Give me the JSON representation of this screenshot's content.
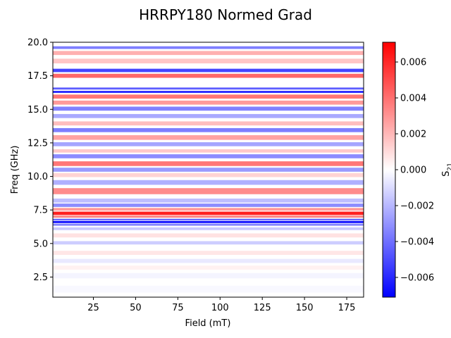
{
  "chart_data": {
    "type": "heatmap",
    "title": "HRRPY180 Normed Grad",
    "xlabel": "Field (mT)",
    "ylabel": "Freq (GHz)",
    "xlim": [
      1,
      185
    ],
    "ylim": [
      1,
      20
    ],
    "x_ticks": [
      25,
      50,
      75,
      100,
      125,
      150,
      175
    ],
    "x_tick_labels": [
      "25",
      "50",
      "75",
      "100",
      "125",
      "150",
      "175"
    ],
    "y_ticks": [
      2.5,
      5.0,
      7.5,
      10.0,
      12.5,
      15.0,
      17.5,
      20.0
    ],
    "y_tick_labels": [
      "2.5",
      "5.0",
      "7.5",
      "10.0",
      "12.5",
      "15.0",
      "17.5",
      "20.0"
    ],
    "colorbar": {
      "label": "S21",
      "label_main": "S",
      "label_sub": "21",
      "range": [
        -0.0071,
        0.0071
      ],
      "ticks": [
        0.006,
        0.004,
        0.002,
        0.0,
        -0.002,
        -0.004,
        -0.006
      ],
      "tick_labels": [
        "0.006",
        "0.004",
        "0.002",
        "0.000",
        "−0.002",
        "−0.004",
        "−0.006"
      ],
      "colormap": "bwr",
      "low_color": "#0000ff",
      "mid_color": "#ffffff",
      "high_color": "#ff0000"
    },
    "bands": [
      {
        "freq": 1.6,
        "width": 0.5,
        "value": -0.0002
      },
      {
        "freq": 2.6,
        "width": 0.4,
        "value": -0.0003
      },
      {
        "freq": 3.2,
        "width": 0.3,
        "value": 0.0004
      },
      {
        "freq": 3.7,
        "width": 0.3,
        "value": -0.0006
      },
      {
        "freq": 4.3,
        "width": 0.3,
        "value": 0.0007
      },
      {
        "freq": 5.05,
        "width": 0.25,
        "value": -0.0014
      },
      {
        "freq": 5.6,
        "width": 0.3,
        "value": 0.0008
      },
      {
        "freq": 6.1,
        "width": 0.2,
        "value": -0.0015
      },
      {
        "freq": 6.4,
        "width": 0.15,
        "value": -0.0035
      },
      {
        "freq": 6.6,
        "width": 0.15,
        "value": -0.0068
      },
      {
        "freq": 6.78,
        "width": 0.12,
        "value": -0.0042
      },
      {
        "freq": 7.0,
        "width": 0.15,
        "value": 0.0035
      },
      {
        "freq": 7.25,
        "width": 0.25,
        "value": 0.0062
      },
      {
        "freq": 7.55,
        "width": 0.2,
        "value": 0.0028
      },
      {
        "freq": 7.85,
        "width": 0.25,
        "value": -0.0032
      },
      {
        "freq": 8.2,
        "width": 0.3,
        "value": -0.0018
      },
      {
        "freq": 8.9,
        "width": 0.45,
        "value": 0.0032
      },
      {
        "freq": 9.55,
        "width": 0.35,
        "value": -0.0022
      },
      {
        "freq": 10.1,
        "width": 0.3,
        "value": 0.0012
      },
      {
        "freq": 10.5,
        "width": 0.3,
        "value": -0.0028
      },
      {
        "freq": 10.95,
        "width": 0.35,
        "value": 0.0038
      },
      {
        "freq": 11.5,
        "width": 0.3,
        "value": -0.0032
      },
      {
        "freq": 11.9,
        "width": 0.25,
        "value": 0.0015
      },
      {
        "freq": 12.4,
        "width": 0.3,
        "value": -0.0025
      },
      {
        "freq": 12.9,
        "width": 0.35,
        "value": 0.0026
      },
      {
        "freq": 13.45,
        "width": 0.3,
        "value": -0.0036
      },
      {
        "freq": 13.95,
        "width": 0.3,
        "value": 0.0018
      },
      {
        "freq": 14.5,
        "width": 0.3,
        "value": -0.0024
      },
      {
        "freq": 15.05,
        "width": 0.3,
        "value": -0.0035
      },
      {
        "freq": 15.5,
        "width": 0.3,
        "value": 0.0028
      },
      {
        "freq": 15.95,
        "width": 0.3,
        "value": 0.0038
      },
      {
        "freq": 16.3,
        "width": 0.15,
        "value": -0.006
      },
      {
        "freq": 16.55,
        "width": 0.15,
        "value": -0.0045
      },
      {
        "freq": 17.5,
        "width": 0.3,
        "value": 0.0042
      },
      {
        "freq": 17.9,
        "width": 0.25,
        "value": -0.0052
      },
      {
        "freq": 18.6,
        "width": 0.35,
        "value": 0.0016
      },
      {
        "freq": 19.2,
        "width": 0.3,
        "value": 0.0022
      },
      {
        "freq": 19.6,
        "width": 0.2,
        "value": -0.0036
      }
    ]
  }
}
